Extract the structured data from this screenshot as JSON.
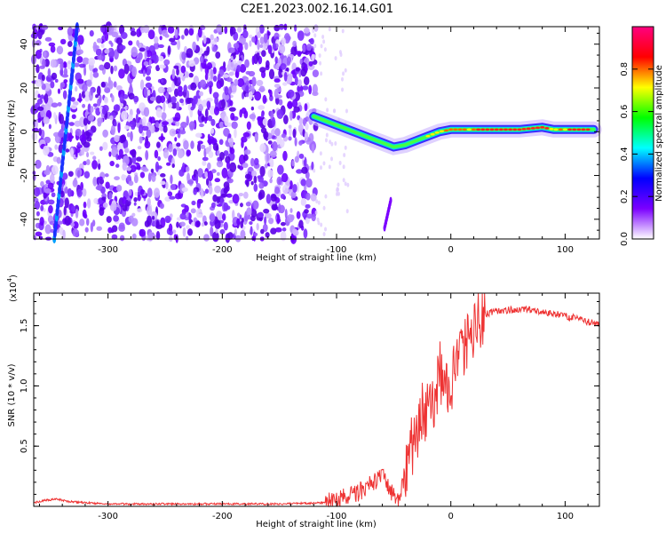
{
  "title": "C2E1.2023.002.16.14.G01",
  "chart_data": [
    {
      "type": "heatmap",
      "xlabel": "Height of straight line (km)",
      "ylabel": "Frequency (Hz)",
      "xlim": [
        -365,
        130
      ],
      "ylim": [
        -49,
        48
      ],
      "xticks": [
        -300,
        -200,
        -100,
        0,
        100
      ],
      "yticks": [
        -40,
        -20,
        0,
        20,
        40
      ],
      "grid": false,
      "colorbar": {
        "label": "Normalized spectral amplitude",
        "range": [
          0,
          1
        ],
        "ticks": [
          0.0,
          0.2,
          0.4,
          0.6,
          0.8
        ],
        "colors": [
          "#ffffff",
          "#7b00ff",
          "#0000ff",
          "#00ffff",
          "#00ff00",
          "#ffff00",
          "#ff0000",
          "#ff0080"
        ]
      },
      "trace": {
        "x": [
          -120,
          -110,
          -100,
          -90,
          -80,
          -70,
          -60,
          -50,
          -40,
          -30,
          -20,
          -10,
          0,
          20,
          40,
          60,
          80,
          90,
          100,
          110,
          125
        ],
        "y": [
          7,
          5,
          3,
          1,
          -1,
          -3,
          -5,
          -7,
          -6,
          -4,
          -2,
          0,
          1,
          1,
          1,
          1,
          2,
          1,
          1,
          1,
          1
        ]
      }
    },
    {
      "type": "line",
      "xlabel": "Height of straight line (km)",
      "ylabel": "SNR (10 * v/v)",
      "yscale_label": "(x10",
      "yscale_exp": "4",
      "yscale_close": ")",
      "xlim": [
        -365,
        130
      ],
      "ylim": [
        0,
        1.77
      ],
      "xticks": [
        -300,
        -200,
        -100,
        0,
        100
      ],
      "yticks": [
        0.5,
        1.0,
        1.5
      ],
      "color": "#ee3333",
      "grid": false,
      "x": [
        -365,
        -355,
        -345,
        -335,
        -320,
        -300,
        -250,
        -200,
        -150,
        -110,
        -100,
        -90,
        -80,
        -70,
        -60,
        -55,
        -50,
        -45,
        -40,
        -35,
        -30,
        -25,
        -20,
        -15,
        -10,
        -5,
        0,
        5,
        10,
        15,
        20,
        25,
        30,
        40,
        50,
        60,
        70,
        80,
        90,
        100,
        110,
        120,
        130
      ],
      "y": [
        0.03,
        0.05,
        0.06,
        0.04,
        0.03,
        0.02,
        0.02,
        0.02,
        0.02,
        0.03,
        0.05,
        0.08,
        0.12,
        0.2,
        0.25,
        0.15,
        0.08,
        0.05,
        0.3,
        0.45,
        0.6,
        0.75,
        0.8,
        0.9,
        1.1,
        1.05,
        1.0,
        1.15,
        1.3,
        1.45,
        1.5,
        1.55,
        1.6,
        1.62,
        1.63,
        1.63,
        1.63,
        1.62,
        1.6,
        1.58,
        1.56,
        1.53,
        1.51
      ]
    }
  ]
}
